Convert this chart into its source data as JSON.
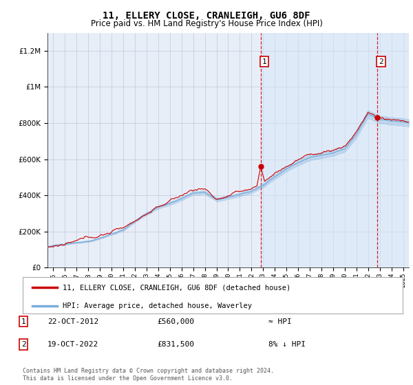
{
  "title": "11, ELLERY CLOSE, CRANLEIGH, GU6 8DF",
  "subtitle": "Price paid vs. HM Land Registry's House Price Index (HPI)",
  "title_fontsize": 10,
  "subtitle_fontsize": 8.5,
  "ylabel_ticks": [
    "£0",
    "£200K",
    "£400K",
    "£600K",
    "£800K",
    "£1M",
    "£1.2M"
  ],
  "ytick_values": [
    0,
    200000,
    400000,
    600000,
    800000,
    1000000,
    1200000
  ],
  "ylim": [
    0,
    1300000
  ],
  "xlim_start": 1994.5,
  "xlim_end": 2025.5,
  "transaction1": {
    "date_x": 2012.81,
    "price": 560000,
    "label": "1",
    "date_str": "22-OCT-2012",
    "price_str": "£560,000",
    "hpi_note": "≈ HPI"
  },
  "transaction2": {
    "date_x": 2022.81,
    "price": 831500,
    "label": "2",
    "date_str": "19-OCT-2022",
    "price_str": "£831,500",
    "hpi_note": "8% ↓ HPI"
  },
  "legend_line1": "11, ELLERY CLOSE, CRANLEIGH, GU6 8DF (detached house)",
  "legend_line2": "HPI: Average price, detached house, Waverley",
  "footer1": "Contains HM Land Registry data © Crown copyright and database right 2024.",
  "footer2": "This data is licensed under the Open Government Licence v3.0.",
  "line_color_red": "#cc0000",
  "line_color_blue": "#7aadda",
  "vline_color": "#cc0000",
  "background_color": "#e8eef8",
  "plot_bg": "#ffffff",
  "grid_color": "#c0c8d8",
  "xticks": [
    1995,
    1996,
    1997,
    1998,
    1999,
    2000,
    2001,
    2002,
    2003,
    2004,
    2005,
    2006,
    2007,
    2008,
    2009,
    2010,
    2011,
    2012,
    2013,
    2014,
    2015,
    2016,
    2017,
    2018,
    2019,
    2020,
    2021,
    2022,
    2023,
    2024,
    2025
  ],
  "hpi_anchors": [
    [
      1994.5,
      115000
    ],
    [
      1995,
      120000
    ],
    [
      1996,
      125000
    ],
    [
      1997,
      132000
    ],
    [
      1998,
      145000
    ],
    [
      1999,
      162000
    ],
    [
      2000,
      185000
    ],
    [
      2001,
      210000
    ],
    [
      2002,
      255000
    ],
    [
      2003,
      295000
    ],
    [
      2004,
      330000
    ],
    [
      2005,
      355000
    ],
    [
      2006,
      380000
    ],
    [
      2007,
      410000
    ],
    [
      2008,
      415000
    ],
    [
      2009,
      370000
    ],
    [
      2010,
      385000
    ],
    [
      2011,
      400000
    ],
    [
      2012,
      420000
    ],
    [
      2013,
      450000
    ],
    [
      2014,
      500000
    ],
    [
      2015,
      545000
    ],
    [
      2016,
      580000
    ],
    [
      2017,
      610000
    ],
    [
      2018,
      625000
    ],
    [
      2019,
      640000
    ],
    [
      2020,
      660000
    ],
    [
      2021,
      740000
    ],
    [
      2022,
      850000
    ],
    [
      2023,
      820000
    ],
    [
      2024,
      810000
    ],
    [
      2025.5,
      800000
    ]
  ],
  "red_anchors": [
    [
      1994.5,
      112000
    ],
    [
      1995,
      118000
    ],
    [
      1996,
      122000
    ],
    [
      1997,
      130000
    ],
    [
      1998,
      142000
    ],
    [
      1999,
      158000
    ],
    [
      2000,
      182000
    ],
    [
      2001,
      205000
    ],
    [
      2002,
      250000
    ],
    [
      2003,
      290000
    ],
    [
      2004,
      335000
    ],
    [
      2005,
      360000
    ],
    [
      2006,
      390000
    ],
    [
      2007,
      425000
    ],
    [
      2008,
      430000
    ],
    [
      2009,
      375000
    ],
    [
      2010,
      390000
    ],
    [
      2011,
      405000
    ],
    [
      2012,
      425000
    ],
    [
      2013,
      460000
    ],
    [
      2014,
      510000
    ],
    [
      2015,
      555000
    ],
    [
      2016,
      590000
    ],
    [
      2017,
      615000
    ],
    [
      2018,
      630000
    ],
    [
      2019,
      645000
    ],
    [
      2020,
      665000
    ],
    [
      2021,
      750000
    ],
    [
      2022,
      860000
    ],
    [
      2023,
      825000
    ],
    [
      2024,
      815000
    ],
    [
      2025.5,
      805000
    ]
  ]
}
